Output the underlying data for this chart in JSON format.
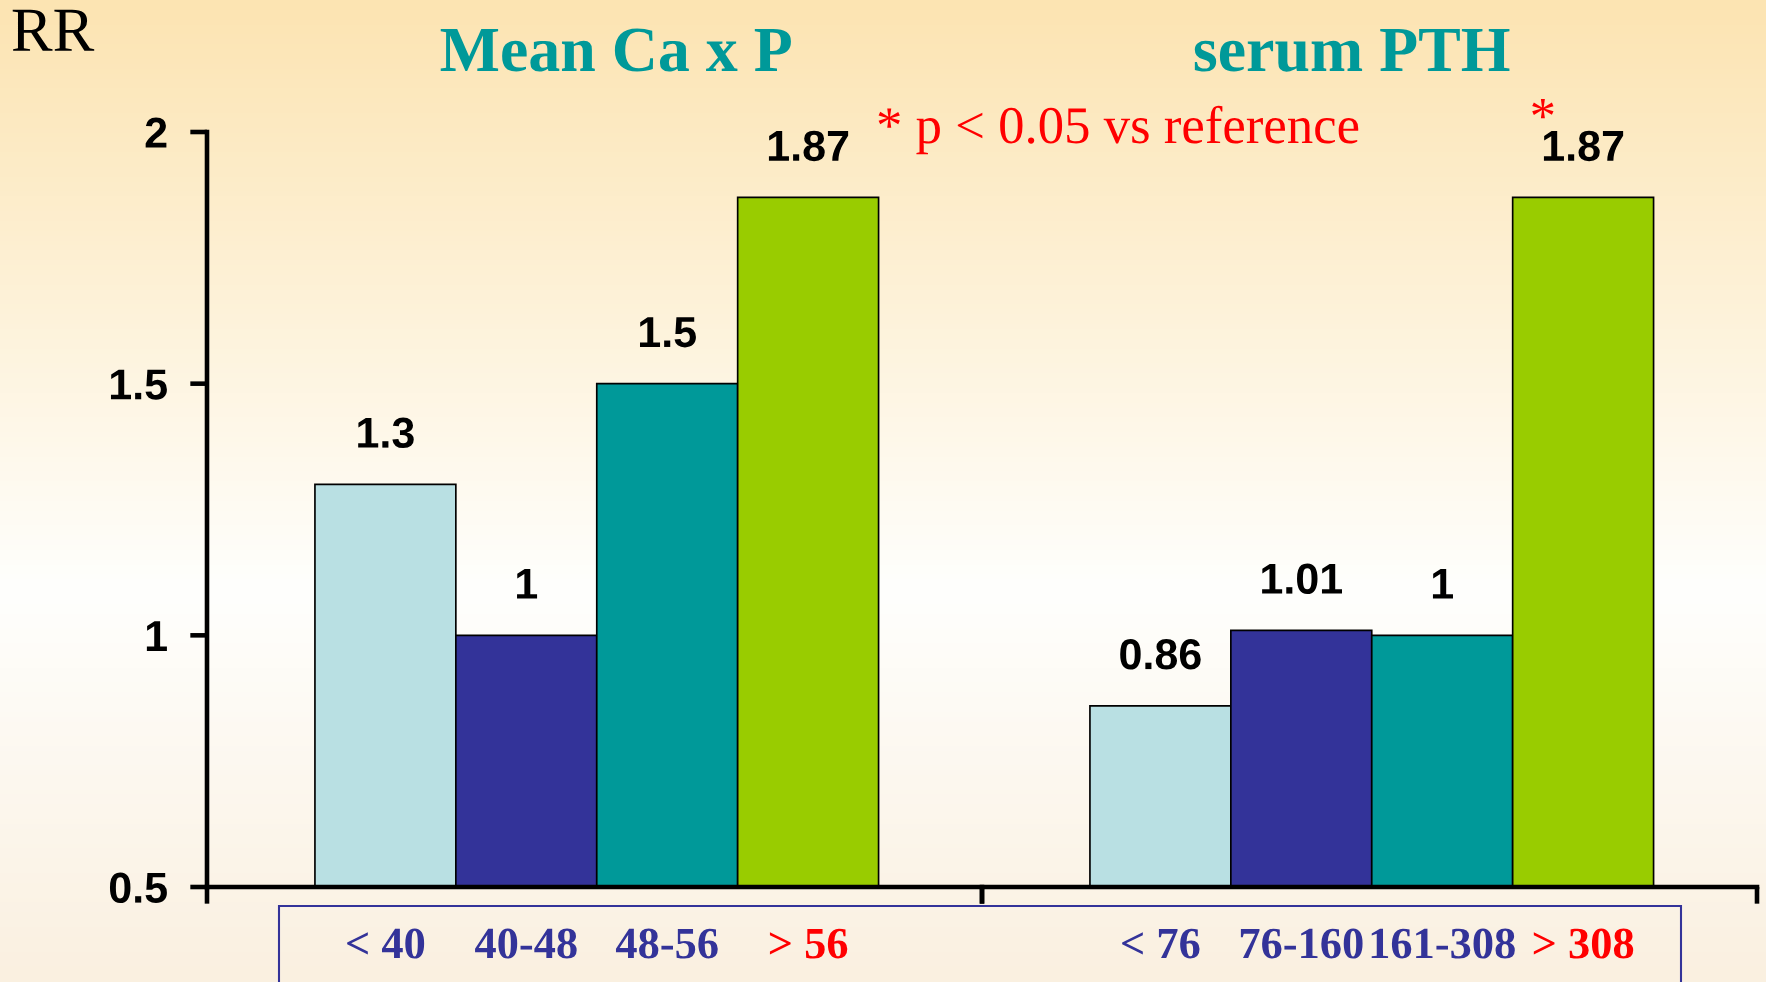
{
  "chart_data": [
    {
      "type": "bar",
      "title": "Mean Ca x P",
      "ylabel": "RR",
      "categories": [
        "< 40",
        "40-48",
        "48-56",
        "> 56"
      ],
      "values": [
        1.3,
        1,
        1.5,
        1.87
      ],
      "colors": [
        "#b9e0e3",
        "#333399",
        "#009999",
        "#99cc00"
      ],
      "ylim": [
        0.5,
        2
      ],
      "yticks": [
        0.5,
        1,
        1.5,
        2
      ],
      "data_labels": true,
      "annotations": [
        "* p < 0.05 vs reference"
      ]
    },
    {
      "type": "bar",
      "title": "serum PTH",
      "categories": [
        "< 76",
        "76-160",
        "161-308",
        "> 308"
      ],
      "values": [
        0.86,
        1.01,
        1,
        1.87
      ],
      "colors": [
        "#b9e0e3",
        "#333399",
        "#009999",
        "#99cc00"
      ],
      "ylim": [
        0.5,
        2
      ],
      "yticks": [
        0.5,
        1,
        1.5,
        2
      ],
      "tick_labels": "x",
      "data_labels": true,
      "annotations": [
        {
          "text": "*",
          "x": "> 308",
          "y": 1.87
        }
      ]
    }
  ]
}
